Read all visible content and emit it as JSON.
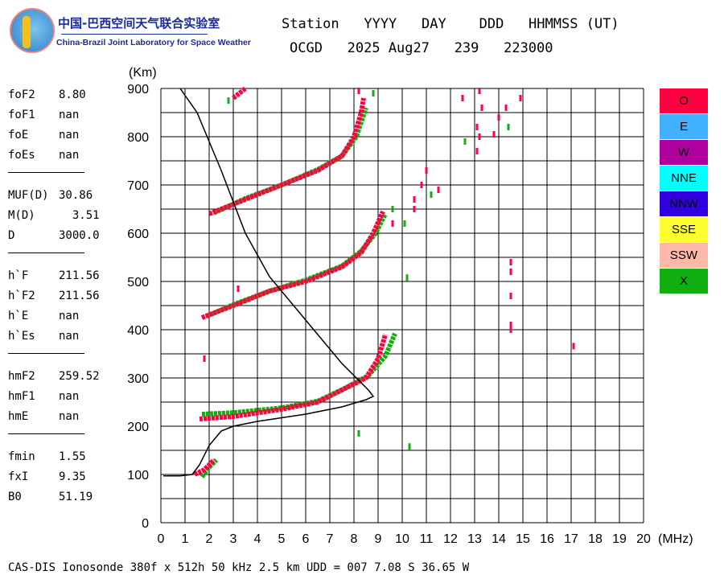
{
  "logo": {
    "cn": "中国-巴西空间天气联合实验室",
    "en": "China-Brazil Joint Laboratory for Space Weather"
  },
  "header": {
    "line1": "Station   YYYY   DAY    DDD   HHMMSS (UT)",
    "line2": "OCGD   2025 Aug27   239   223000"
  },
  "params": [
    [
      {
        "k": "foF2",
        "v": "8.80"
      },
      {
        "k": "foF1",
        "v": "nan"
      },
      {
        "k": "foE",
        "v": "nan"
      },
      {
        "k": "foEs",
        "v": "nan"
      }
    ],
    [
      {
        "k": "MUF(D)",
        "v": "30.86"
      },
      {
        "k": "M(D)",
        "v": "  3.51"
      },
      {
        "k": "D",
        "v": "3000.0"
      }
    ],
    [
      {
        "k": "h`F",
        "v": "211.56"
      },
      {
        "k": "h`F2",
        "v": "211.56"
      },
      {
        "k": "h`E",
        "v": "nan"
      },
      {
        "k": "h`Es",
        "v": "nan"
      }
    ],
    [
      {
        "k": "hmF2",
        "v": "259.52"
      },
      {
        "k": "hmF1",
        "v": "nan"
      },
      {
        "k": "hmE",
        "v": "nan"
      }
    ],
    [
      {
        "k": "fmin",
        "v": "1.55"
      },
      {
        "k": "fxI",
        "v": "9.35"
      },
      {
        "k": "B0",
        "v": "51.19"
      }
    ]
  ],
  "legend": [
    {
      "label": "O",
      "color": "#ff0040"
    },
    {
      "label": "E",
      "color": "#40b0ff"
    },
    {
      "label": "W",
      "color": "#b000a0"
    },
    {
      "label": "NNE",
      "color": "#00ffff"
    },
    {
      "label": "NNW",
      "color": "#3000e0"
    },
    {
      "label": "SSE",
      "color": "#ffff30"
    },
    {
      "label": "SSW",
      "color": "#ffb8a8"
    },
    {
      "label": "X",
      "color": "#10b010"
    }
  ],
  "footer": "CAS-DIS Ionosonde 380f x 512h 50 kHz 2.5 km UDD = 007 7.08 S 36.65 W",
  "chart_data": {
    "type": "scatter",
    "xlabel": "(MHz)",
    "ylabel": "(Km)",
    "xlim": [
      0,
      20
    ],
    "ylim": [
      0,
      900
    ],
    "xticks": [
      "0",
      "1",
      "2",
      "3",
      "4",
      "5",
      "6",
      "7",
      "8",
      "9",
      "10",
      "11",
      "12",
      "13",
      "14",
      "15",
      "16",
      "17",
      "18",
      "19",
      "20"
    ],
    "yticks": [
      "0",
      "100",
      "200",
      "300",
      "400",
      "500",
      "600",
      "700",
      "800",
      "900"
    ],
    "grid": true,
    "series": [
      {
        "name": "X",
        "color": "#10b010",
        "traces": [
          [
            [
              1.7,
              225
            ],
            [
              3,
              228
            ],
            [
              5,
              238
            ],
            [
              6.5,
              252
            ],
            [
              7.6,
              278
            ],
            [
              8.6,
              305
            ],
            [
              9.3,
              345
            ],
            [
              9.7,
              392
            ]
          ],
          [
            [
              1.9,
              428
            ],
            [
              3,
              452
            ],
            [
              4.5,
              480
            ],
            [
              6,
              503
            ],
            [
              7.5,
              532
            ],
            [
              8.3,
              563
            ],
            [
              8.9,
              600
            ],
            [
              9.3,
              640
            ]
          ],
          [
            [
              2.2,
              642
            ],
            [
              3.5,
              672
            ],
            [
              5,
              700
            ],
            [
              6.5,
              732
            ],
            [
              7.5,
              760
            ],
            [
              8.1,
              800
            ],
            [
              8.5,
              860
            ]
          ],
          [
            [
              1.7,
              95
            ],
            [
              2,
              115
            ],
            [
              2.3,
              130
            ]
          ]
        ],
        "points": [
          [
            8.2,
            185
          ],
          [
            10.2,
            508
          ],
          [
            10.3,
            158
          ],
          [
            9.6,
            650
          ],
          [
            10.1,
            620
          ],
          [
            11.2,
            680
          ],
          [
            8.8,
            890
          ],
          [
            12.6,
            790
          ],
          [
            14.4,
            820
          ],
          [
            2.8,
            875
          ]
        ]
      },
      {
        "name": "O",
        "color": "#ff0040",
        "traces": [
          [
            [
              1.6,
              215
            ],
            [
              3,
              220
            ],
            [
              5,
              235
            ],
            [
              6.5,
              250
            ],
            [
              7.5,
              275
            ],
            [
              8.5,
              300
            ],
            [
              9,
              340
            ],
            [
              9.3,
              390
            ]
          ],
          [
            [
              1.7,
              425
            ],
            [
              3,
              450
            ],
            [
              4.5,
              480
            ],
            [
              6,
              500
            ],
            [
              7.5,
              530
            ],
            [
              8.3,
              560
            ],
            [
              8.8,
              600
            ],
            [
              9.2,
              645
            ]
          ],
          [
            [
              2,
              640
            ],
            [
              3.5,
              670
            ],
            [
              5,
              700
            ],
            [
              6.5,
              730
            ],
            [
              7.5,
              760
            ],
            [
              8,
              800
            ],
            [
              8.3,
              850
            ],
            [
              8.4,
              880
            ]
          ],
          [
            [
              3,
              880
            ],
            [
              3.5,
              900
            ]
          ],
          [
            [
              1.4,
              100
            ],
            [
              1.8,
              110
            ],
            [
              2.2,
              130
            ]
          ]
        ],
        "points": [
          [
            1.8,
            340
          ],
          [
            3.2,
            485
          ],
          [
            10.5,
            650
          ],
          [
            10.8,
            700
          ],
          [
            11,
            730
          ],
          [
            11.5,
            690
          ],
          [
            12.5,
            880
          ],
          [
            13.1,
            820
          ],
          [
            13.2,
            800
          ],
          [
            13.1,
            770
          ],
          [
            13.8,
            805
          ],
          [
            14,
            840
          ],
          [
            14.3,
            860
          ],
          [
            14.9,
            880
          ],
          [
            13.2,
            895
          ],
          [
            13.3,
            860
          ],
          [
            14.5,
            540
          ],
          [
            14.5,
            520
          ],
          [
            14.5,
            470
          ],
          [
            14.5,
            410
          ],
          [
            14.5,
            400
          ],
          [
            17.1,
            366
          ],
          [
            8.2,
            895
          ],
          [
            9.6,
            620
          ],
          [
            10.5,
            670
          ]
        ]
      }
    ],
    "profile": [
      [
        0.1,
        97
      ],
      [
        0.8,
        97
      ],
      [
        1.3,
        100
      ],
      [
        1.6,
        120
      ],
      [
        2,
        160
      ],
      [
        2.5,
        190
      ],
      [
        3,
        200
      ],
      [
        4,
        210
      ],
      [
        6,
        225
      ],
      [
        7.5,
        240
      ],
      [
        8.5,
        255
      ],
      [
        8.8,
        262
      ],
      [
        8.6,
        275
      ],
      [
        7.5,
        330
      ],
      [
        6,
        420
      ],
      [
        4.5,
        510
      ],
      [
        3.5,
        600
      ],
      [
        2.5,
        730
      ],
      [
        1.5,
        850
      ],
      [
        0.8,
        900
      ]
    ]
  }
}
